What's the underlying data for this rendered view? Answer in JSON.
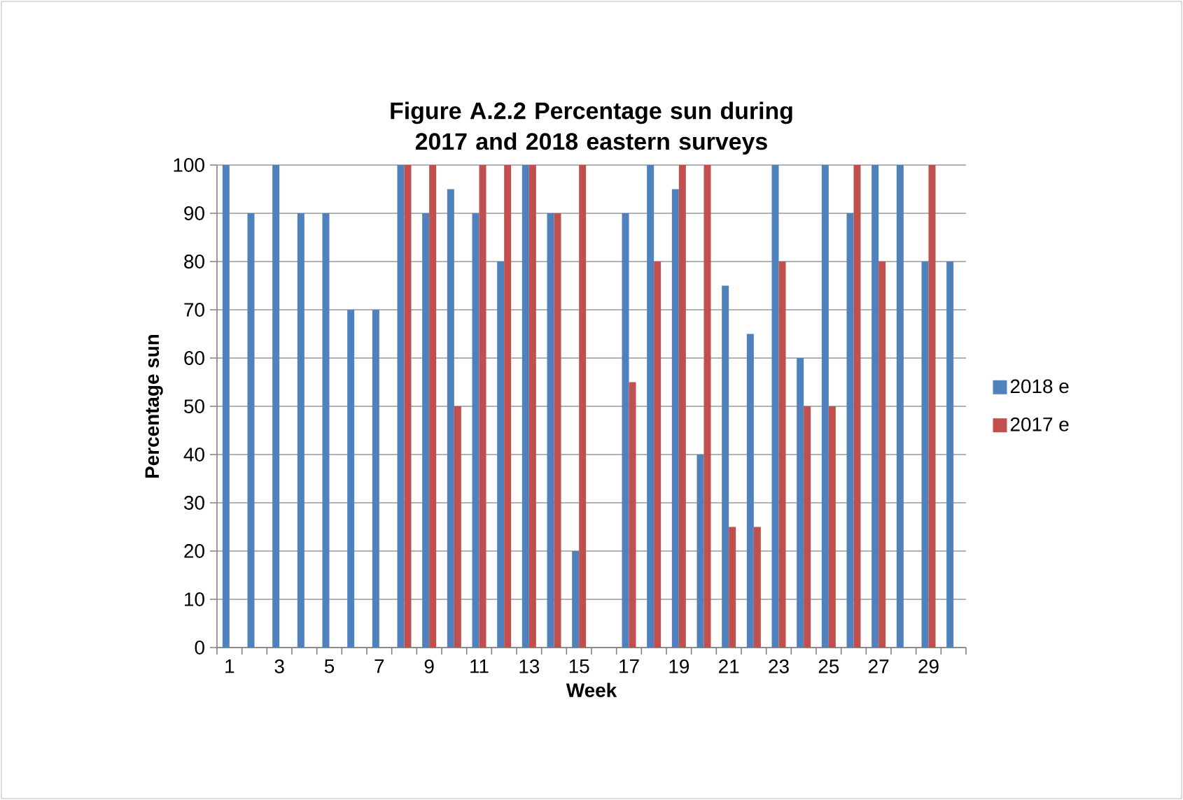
{
  "chart_data": {
    "type": "bar",
    "title": "Figure A.2.2 Percentage sun during 2017 and 2018 eastern surveys",
    "xlabel": "Week",
    "ylabel": "Percentage sun",
    "categories": [
      "1",
      null,
      "3",
      null,
      "5",
      null,
      "7",
      null,
      "9",
      null,
      "11",
      null,
      "13",
      null,
      "15",
      null,
      "17",
      null,
      "19",
      null,
      "21",
      null,
      "23",
      null,
      "25",
      null,
      "27",
      null,
      "29",
      null
    ],
    "series": [
      {
        "name": "2018 e",
        "color": "#4f81bd",
        "values": [
          100,
          90,
          100,
          90,
          90,
          70,
          70,
          100,
          90,
          95,
          90,
          80,
          100,
          90,
          20,
          null,
          90,
          100,
          95,
          40,
          75,
          65,
          100,
          60,
          100,
          90,
          100,
          100,
          80,
          80
        ]
      },
      {
        "name": "2017 e",
        "color": "#c0504d",
        "values": [
          null,
          null,
          null,
          null,
          null,
          null,
          null,
          100,
          100,
          50,
          100,
          100,
          100,
          90,
          100,
          null,
          55,
          80,
          100,
          100,
          25,
          25,
          80,
          50,
          50,
          100,
          80,
          null,
          100,
          null
        ]
      }
    ],
    "ylim": [
      0,
      100
    ],
    "yticks": [
      0,
      10,
      20,
      30,
      40,
      50,
      60,
      70,
      80,
      90,
      100
    ],
    "grid": "y",
    "legend": "right"
  }
}
